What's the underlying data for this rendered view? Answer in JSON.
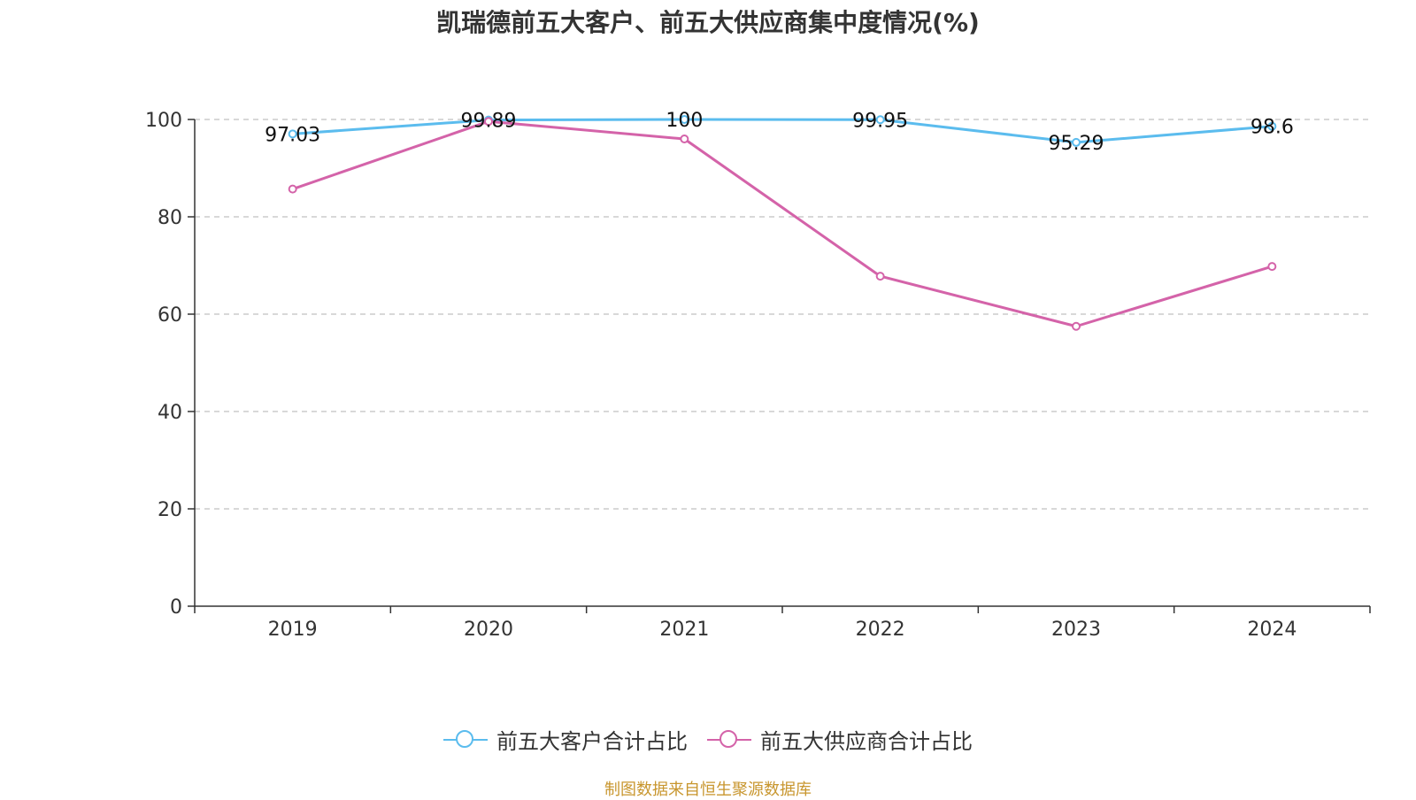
{
  "title": "凯瑞德前五大客户、前五大供应商集中度情况(%)",
  "source": "制图数据来自恒生聚源数据库",
  "chart_data": {
    "type": "line",
    "title": "凯瑞德前五大客户、前五大供应商集中度情况(%)",
    "xlabel": "",
    "ylabel": "",
    "categories": [
      "2019",
      "2020",
      "2021",
      "2022",
      "2023",
      "2024"
    ],
    "ylim": [
      0,
      100
    ],
    "yticks": [
      0,
      20,
      40,
      60,
      80,
      100
    ],
    "grid": true,
    "legend_position": "bottom",
    "series": [
      {
        "name": "前五大客户合计占比",
        "color": "#5bbcee",
        "values": [
          97.03,
          99.89,
          100,
          99.95,
          95.29,
          98.6
        ],
        "labels": [
          "97.03",
          "99.89",
          "100",
          "99.95",
          "95.29",
          "98.6"
        ]
      },
      {
        "name": "前五大供应商合计占比",
        "color": "#d463a9",
        "values": [
          85.7,
          99.6,
          96.0,
          67.8,
          57.5,
          69.8
        ],
        "labels": null
      }
    ]
  }
}
